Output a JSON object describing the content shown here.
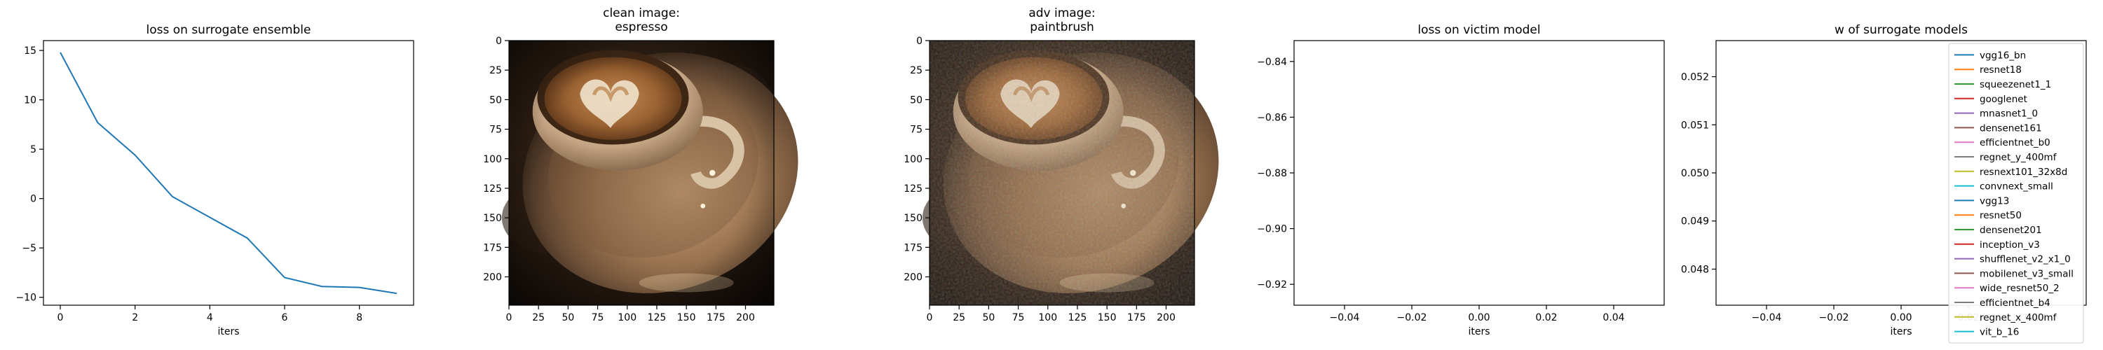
{
  "chart_data": [
    {
      "type": "line",
      "title": "loss on surrogate ensemble",
      "xlabel": "iters",
      "ylabel": "",
      "x": [
        0,
        1,
        2,
        3,
        4,
        5,
        6,
        7,
        8,
        9
      ],
      "series": [
        {
          "values": [
            14.8,
            7.7,
            4.4,
            0.2,
            -1.9,
            -4.0,
            -8.0,
            -8.9,
            -9.0,
            -9.6
          ],
          "color": "#1f77b4"
        }
      ],
      "xlim": [
        -0.45,
        9.45
      ],
      "ylim": [
        -10.8,
        16.0
      ],
      "xticks": [
        0,
        2,
        4,
        6,
        8
      ],
      "yticks": [
        15,
        10,
        5,
        0,
        -5,
        -10
      ],
      "xtick_labels": [
        "0",
        "2",
        "4",
        "6",
        "8"
      ],
      "ytick_labels": [
        "15",
        "10",
        "5",
        "0",
        "−5",
        "−10"
      ],
      "grid": false
    },
    {
      "type": "image",
      "title_lines": [
        "clean image:",
        "espresso"
      ],
      "xlim": [
        0,
        224
      ],
      "ylim": [
        224,
        0
      ],
      "xticks": [
        0,
        25,
        50,
        75,
        100,
        125,
        150,
        175,
        200
      ],
      "yticks": [
        0,
        25,
        50,
        75,
        100,
        125,
        150,
        175,
        200
      ],
      "xtick_labels": [
        "0",
        "25",
        "50",
        "75",
        "100",
        "125",
        "150",
        "175",
        "200"
      ],
      "ytick_labels": [
        "0",
        "25",
        "50",
        "75",
        "100",
        "125",
        "150",
        "175",
        "200"
      ],
      "adversarial_noise": false
    },
    {
      "type": "image",
      "title_lines": [
        "adv image:",
        "paintbrush"
      ],
      "xlim": [
        0,
        224
      ],
      "ylim": [
        224,
        0
      ],
      "xticks": [
        0,
        25,
        50,
        75,
        100,
        125,
        150,
        175,
        200
      ],
      "yticks": [
        0,
        25,
        50,
        75,
        100,
        125,
        150,
        175,
        200
      ],
      "xtick_labels": [
        "0",
        "25",
        "50",
        "75",
        "100",
        "125",
        "150",
        "175",
        "200"
      ],
      "ytick_labels": [
        "0",
        "25",
        "50",
        "75",
        "100",
        "125",
        "150",
        "175",
        "200"
      ],
      "adversarial_noise": true
    },
    {
      "type": "line",
      "title": "loss on victim model",
      "xlabel": "iters",
      "ylabel": "",
      "series": [],
      "xlim": [
        -0.055,
        0.055
      ],
      "ylim": [
        -0.9275,
        -0.8325
      ],
      "xticks": [
        -0.04,
        -0.02,
        0.0,
        0.02,
        0.04
      ],
      "yticks": [
        -0.84,
        -0.86,
        -0.88,
        -0.9,
        -0.92
      ],
      "xtick_labels": [
        "−0.04",
        "−0.02",
        "0.00",
        "0.02",
        "0.04"
      ],
      "ytick_labels": [
        "−0.84",
        "−0.86",
        "−0.88",
        "−0.90",
        "−0.92"
      ],
      "grid": false
    },
    {
      "type": "line",
      "title": "w of surrogate models",
      "xlabel": "iters",
      "ylabel": "",
      "xlim": [
        -0.055,
        0.055
      ],
      "ylim": [
        0.04725,
        0.05275
      ],
      "xticks": [
        -0.04,
        -0.02,
        0.0,
        0.02,
        0.04
      ],
      "yticks": [
        0.052,
        0.051,
        0.05,
        0.049,
        0.048
      ],
      "xtick_labels": [
        "−0.04",
        "−0.02",
        "0.00",
        "0.02",
        "0.04"
      ],
      "ytick_labels": [
        "0.052",
        "0.051",
        "0.050",
        "0.049",
        "0.048"
      ],
      "grid": false,
      "legend_placement": "top-right",
      "legend": [
        {
          "name": "vgg16_bn",
          "color": "#1f77b4"
        },
        {
          "name": "resnet18",
          "color": "#ff7f0e"
        },
        {
          "name": "squeezenet1_1",
          "color": "#2ca02c"
        },
        {
          "name": "googlenet",
          "color": "#d62728"
        },
        {
          "name": "mnasnet1_0",
          "color": "#9467bd"
        },
        {
          "name": "densenet161",
          "color": "#8c564b"
        },
        {
          "name": "efficientnet_b0",
          "color": "#e377c2"
        },
        {
          "name": "regnet_y_400mf",
          "color": "#7f7f7f"
        },
        {
          "name": "resnext101_32x8d",
          "color": "#bcbd22"
        },
        {
          "name": "convnext_small",
          "color": "#17becf"
        },
        {
          "name": "vgg13",
          "color": "#1f77b4"
        },
        {
          "name": "resnet50",
          "color": "#ff7f0e"
        },
        {
          "name": "densenet201",
          "color": "#2ca02c"
        },
        {
          "name": "inception_v3",
          "color": "#d62728"
        },
        {
          "name": "shufflenet_v2_x1_0",
          "color": "#9467bd"
        },
        {
          "name": "mobilenet_v3_small",
          "color": "#8c564b"
        },
        {
          "name": "wide_resnet50_2",
          "color": "#e377c2"
        },
        {
          "name": "efficientnet_b4",
          "color": "#7f7f7f"
        },
        {
          "name": "regnet_x_400mf",
          "color": "#bcbd22"
        },
        {
          "name": "vit_b_16",
          "color": "#17becf"
        }
      ]
    }
  ]
}
